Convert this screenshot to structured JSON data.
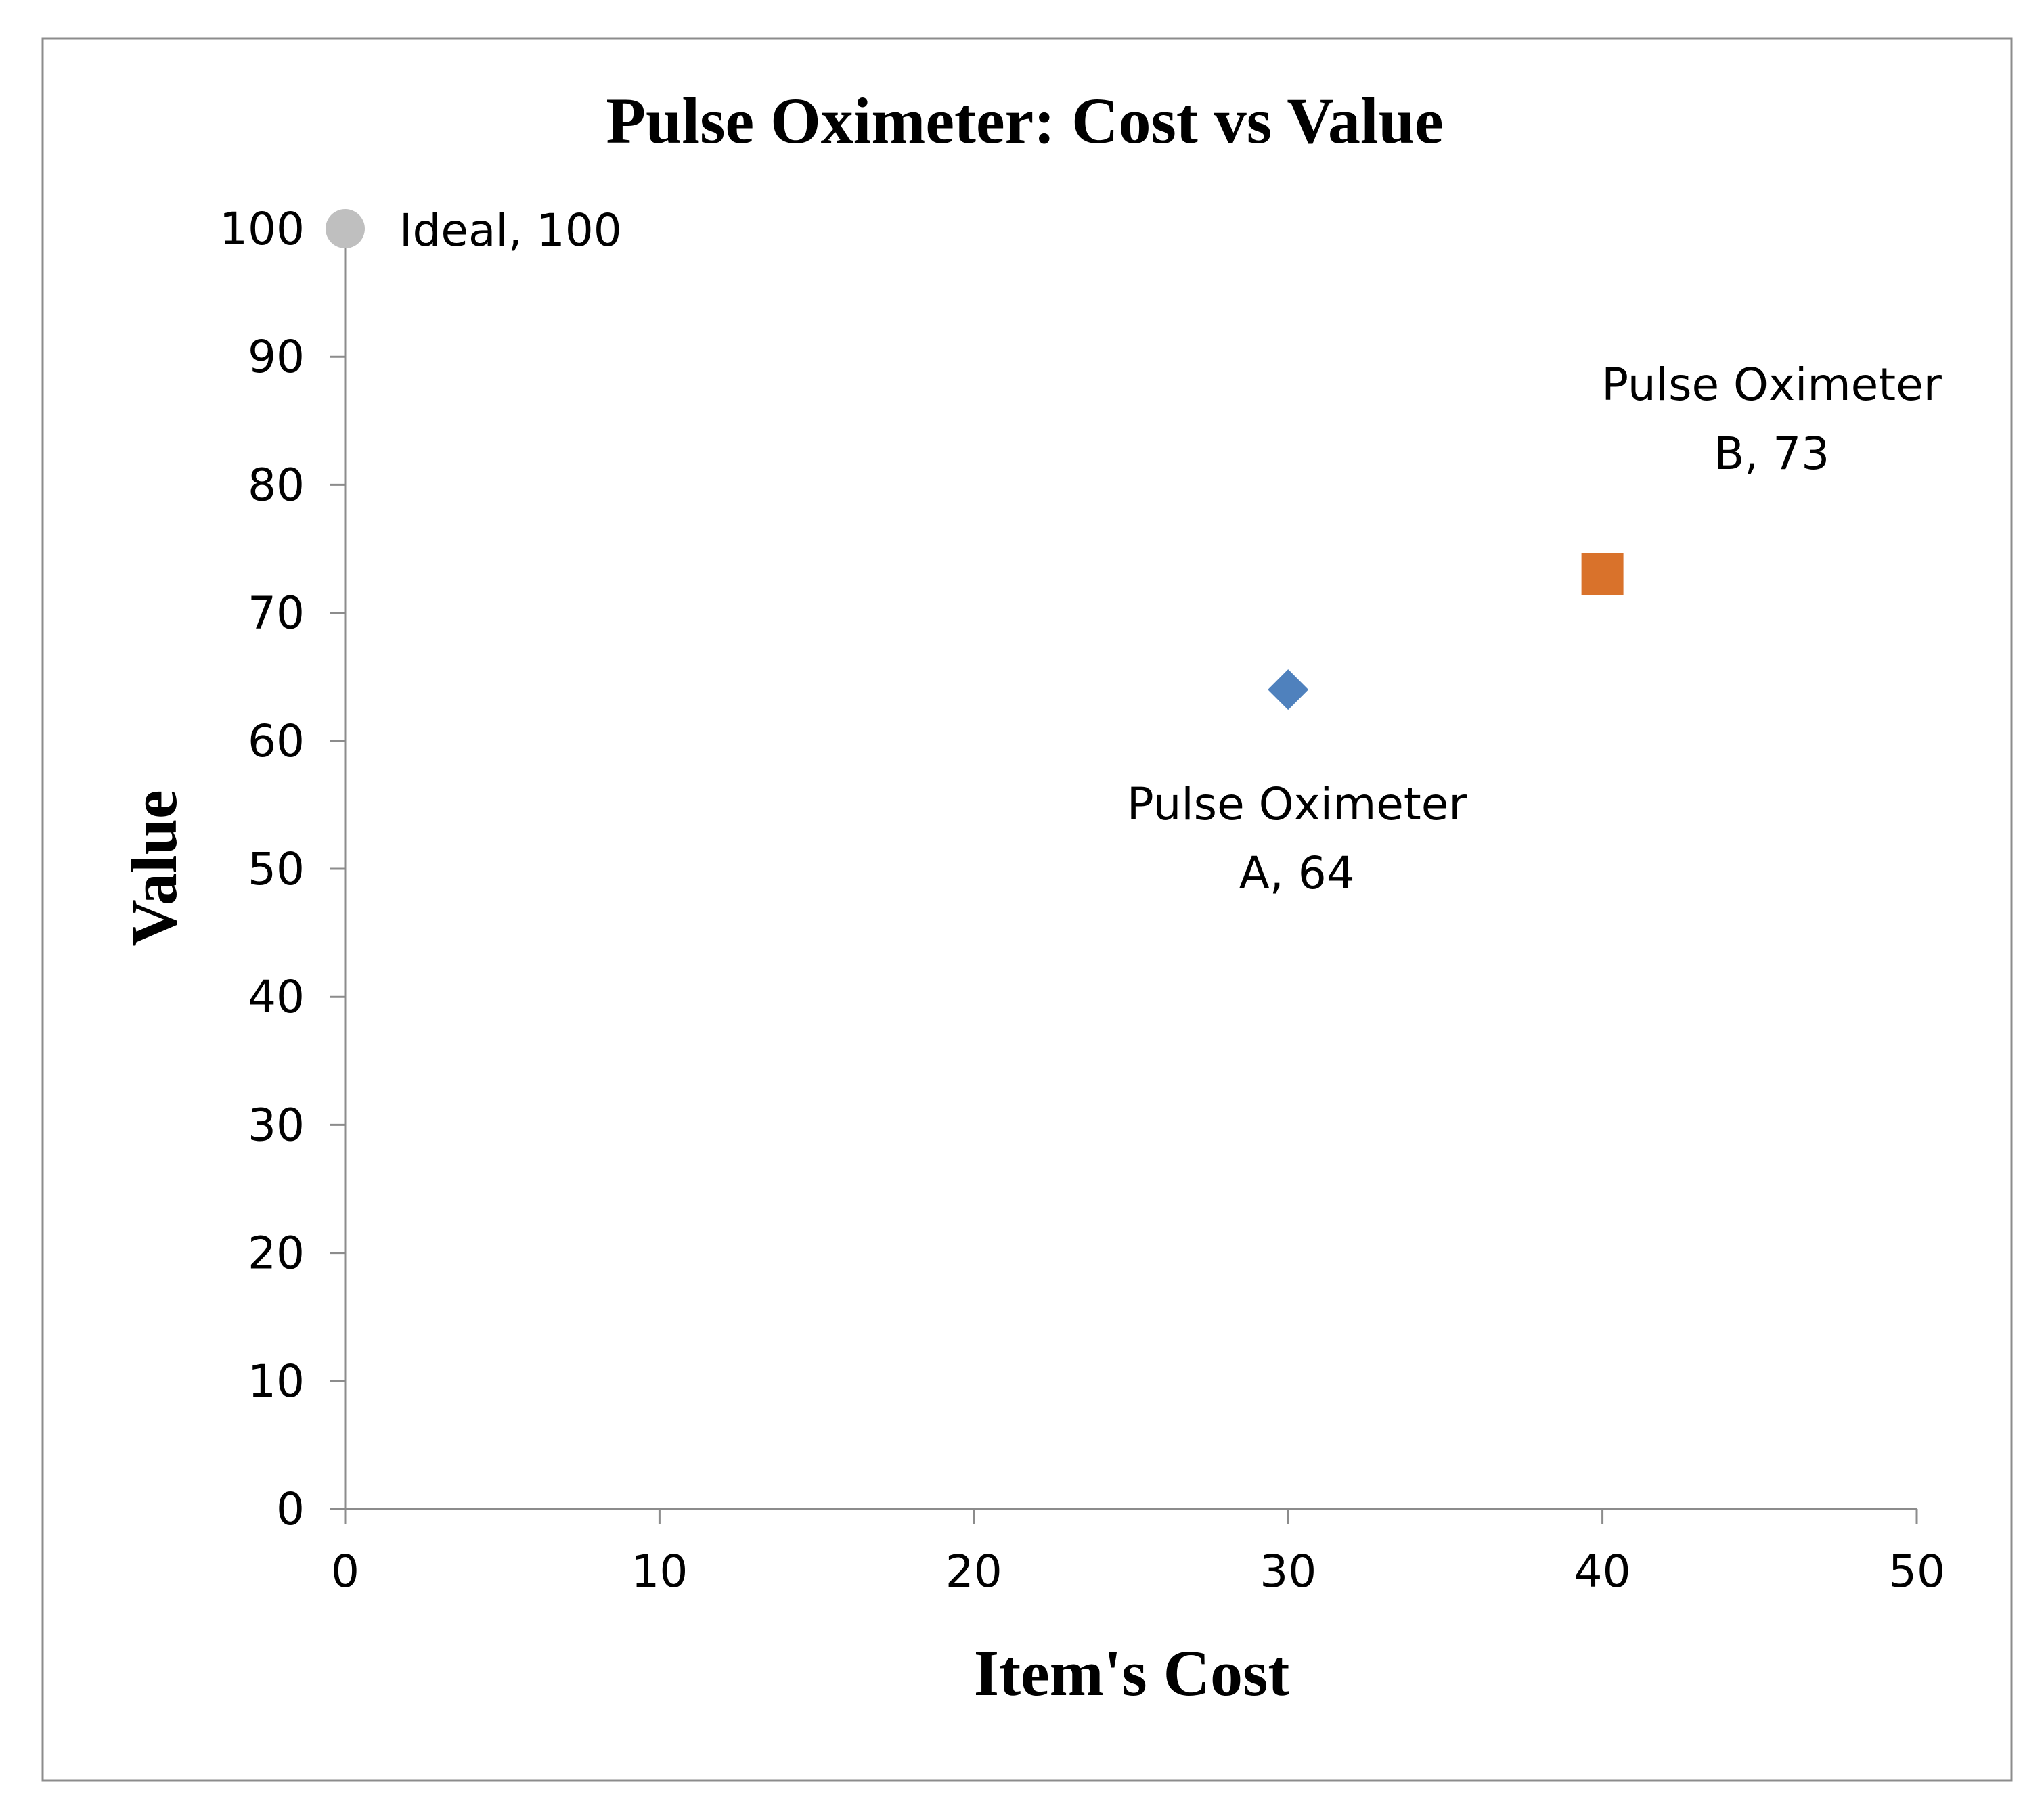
{
  "chart_data": {
    "type": "scatter",
    "title": "Pulse Oximeter: Cost vs Value",
    "xlabel": "Item's Cost",
    "ylabel": "Value",
    "xlim": [
      0,
      50
    ],
    "ylim": [
      0,
      100
    ],
    "x_ticks": [
      0,
      10,
      20,
      30,
      40,
      50
    ],
    "y_ticks": [
      0,
      10,
      20,
      30,
      40,
      50,
      60,
      70,
      80,
      90,
      100
    ],
    "grid": false,
    "legend": "none",
    "series": [
      {
        "name": "Ideal",
        "marker": "circle",
        "color": "#BFBFBF",
        "points": [
          {
            "x": 0,
            "y": 100
          }
        ],
        "label_lines": [
          "Ideal, 100"
        ],
        "label_position": "right"
      },
      {
        "name": "Pulse Oximeter A",
        "marker": "diamond",
        "color": "#4F81BD",
        "points": [
          {
            "x": 30,
            "y": 64
          }
        ],
        "label_lines": [
          "Pulse Oximeter",
          "A, 64"
        ],
        "label_position": "below"
      },
      {
        "name": "Pulse Oximeter B",
        "marker": "square",
        "color": "#D9722B",
        "points": [
          {
            "x": 40,
            "y": 73
          }
        ],
        "label_lines": [
          "Pulse Oximeter",
          "B, 73"
        ],
        "label_position": "above-right"
      }
    ],
    "axis_color": "#8C8C8C",
    "frame_color": "#8C8C8C"
  }
}
